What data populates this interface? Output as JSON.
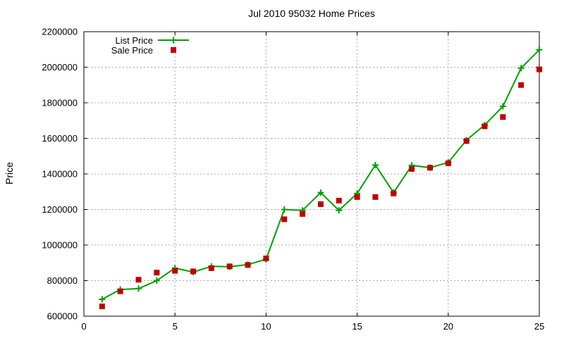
{
  "chart_data": {
    "type": "line",
    "title": "Jul 2010 95032 Home Prices",
    "xlabel": "",
    "ylabel": "Price",
    "xlim": [
      0,
      25
    ],
    "ylim": [
      600000,
      2200000
    ],
    "xticks": [
      0,
      5,
      10,
      15,
      20,
      25
    ],
    "yticks": [
      600000,
      800000,
      1000000,
      1200000,
      1400000,
      1600000,
      1800000,
      2000000,
      2200000
    ],
    "grid": true,
    "legend_position": "top-left",
    "x": [
      1,
      2,
      3,
      4,
      5,
      6,
      7,
      8,
      9,
      10,
      11,
      12,
      13,
      14,
      15,
      16,
      17,
      18,
      19,
      20,
      21,
      22,
      23,
      24,
      25
    ],
    "series": [
      {
        "name": "List Price",
        "color": "#00a000",
        "line": true,
        "marker": "plus",
        "values": [
          695000,
          750000,
          755000,
          800000,
          870000,
          848000,
          880000,
          878000,
          890000,
          920000,
          1200000,
          1195000,
          1295000,
          1195000,
          1290000,
          1450000,
          1295000,
          1448000,
          1435000,
          1465000,
          1590000,
          1675000,
          1780000,
          1995000,
          2098000
        ]
      },
      {
        "name": "Sale Price",
        "color": "#c00000",
        "line": false,
        "marker": "square",
        "values": [
          655000,
          740000,
          805000,
          845000,
          855000,
          852000,
          870000,
          880000,
          888000,
          925000,
          1145000,
          1175000,
          1230000,
          1250000,
          1270000,
          1270000,
          1290000,
          1428000,
          1435000,
          1460000,
          1585000,
          1668000,
          1720000,
          1900000,
          1988000
        ]
      }
    ],
    "grid_color": "#a8a8a8",
    "border_color": "#000000",
    "background": "#ffffff"
  }
}
